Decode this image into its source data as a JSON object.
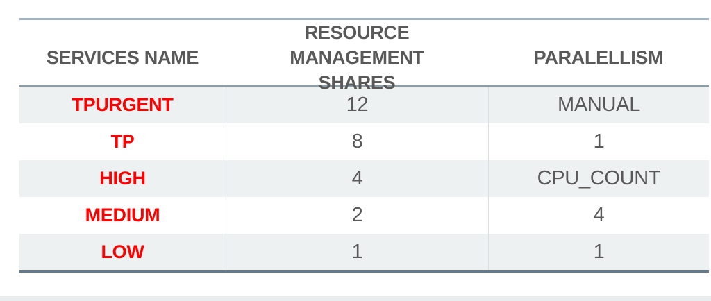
{
  "table": {
    "headers": [
      {
        "label": "SERVICES NAME"
      },
      {
        "label": "RESOURCE MANAGEMENT SHARES"
      },
      {
        "label": "PARALELLISM"
      }
    ],
    "rows": [
      {
        "service": "TPURGENT",
        "shares": "12",
        "parallelism": "MANUAL"
      },
      {
        "service": "TP",
        "shares": "8",
        "parallelism": "1"
      },
      {
        "service": "HIGH",
        "shares": "4",
        "parallelism": "CPU_COUNT"
      },
      {
        "service": "MEDIUM",
        "shares": "2",
        "parallelism": "4"
      },
      {
        "service": "LOW",
        "shares": "1",
        "parallelism": "1"
      }
    ],
    "colors": {
      "header_text": "#595959",
      "service_text": "#ff0000",
      "value_text": "#595959",
      "stripe_background": "#eef1f1",
      "top_border": "#a0b2c0",
      "header_underline": "#8a9dab",
      "bottom_border": "#64798a",
      "column_separator": "#d9e0e4",
      "bottom_bar": "#e9edee"
    }
  }
}
